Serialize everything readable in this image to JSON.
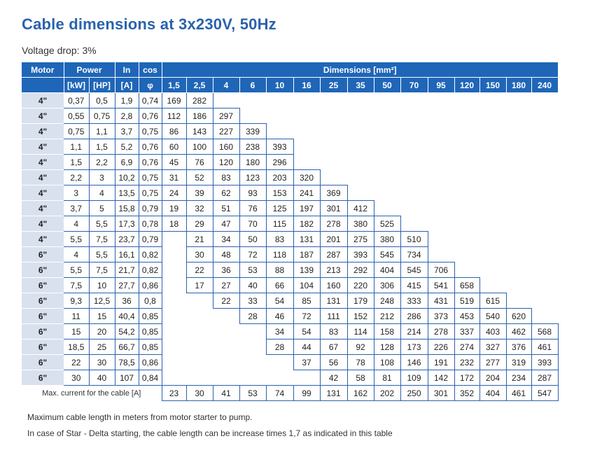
{
  "title": "Cable dimensions at 3x230V, 50Hz",
  "subtitle": "Voltage drop: 3%",
  "headers": {
    "motor": "Motor",
    "power": "Power",
    "in": "In",
    "cos": "cos",
    "dimensions": "Dimensions [mm²]",
    "kw": "[kW]",
    "hp": "[HP]",
    "a": "[A]",
    "phi": "φ"
  },
  "sizes": [
    "1,5",
    "2,5",
    "4",
    "6",
    "10",
    "16",
    "25",
    "35",
    "50",
    "70",
    "95",
    "120",
    "150",
    "180",
    "240"
  ],
  "rows": [
    {
      "motor": "4\"",
      "kw": "0,37",
      "hp": "0,5",
      "in": "1,9",
      "cos": "0,74",
      "start": 0,
      "vals": [
        "169",
        "282"
      ]
    },
    {
      "motor": "4\"",
      "kw": "0,55",
      "hp": "0,75",
      "in": "2,8",
      "cos": "0,76",
      "start": 0,
      "vals": [
        "112",
        "186",
        "297"
      ]
    },
    {
      "motor": "4\"",
      "kw": "0,75",
      "hp": "1,1",
      "in": "3,7",
      "cos": "0,75",
      "start": 0,
      "vals": [
        "86",
        "143",
        "227",
        "339"
      ]
    },
    {
      "motor": "4\"",
      "kw": "1,1",
      "hp": "1,5",
      "in": "5,2",
      "cos": "0,76",
      "start": 0,
      "vals": [
        "60",
        "100",
        "160",
        "238",
        "393"
      ]
    },
    {
      "motor": "4\"",
      "kw": "1,5",
      "hp": "2,2",
      "in": "6,9",
      "cos": "0,76",
      "start": 0,
      "vals": [
        "45",
        "76",
        "120",
        "180",
        "296"
      ]
    },
    {
      "motor": "4\"",
      "kw": "2,2",
      "hp": "3",
      "in": "10,2",
      "cos": "0,75",
      "start": 0,
      "vals": [
        "31",
        "52",
        "83",
        "123",
        "203",
        "320"
      ]
    },
    {
      "motor": "4\"",
      "kw": "3",
      "hp": "4",
      "in": "13,5",
      "cos": "0,75",
      "start": 0,
      "vals": [
        "24",
        "39",
        "62",
        "93",
        "153",
        "241",
        "369"
      ]
    },
    {
      "motor": "4\"",
      "kw": "3,7",
      "hp": "5",
      "in": "15,8",
      "cos": "0,79",
      "start": 0,
      "vals": [
        "19",
        "32",
        "51",
        "76",
        "125",
        "197",
        "301",
        "412"
      ]
    },
    {
      "motor": "4\"",
      "kw": "4",
      "hp": "5,5",
      "in": "17,3",
      "cos": "0,78",
      "start": 0,
      "vals": [
        "18",
        "29",
        "47",
        "70",
        "115",
        "182",
        "278",
        "380",
        "525"
      ]
    },
    {
      "motor": "4\"",
      "kw": "5,5",
      "hp": "7,5",
      "in": "23,7",
      "cos": "0,79",
      "start": 1,
      "vals": [
        "21",
        "34",
        "50",
        "83",
        "131",
        "201",
        "275",
        "380",
        "510"
      ]
    },
    {
      "motor": "6\"",
      "kw": "4",
      "hp": "5,5",
      "in": "16,1",
      "cos": "0,82",
      "start": 1,
      "vals": [
        "30",
        "48",
        "72",
        "118",
        "187",
        "287",
        "393",
        "545",
        "734"
      ]
    },
    {
      "motor": "6\"",
      "kw": "5,5",
      "hp": "7,5",
      "in": "21,7",
      "cos": "0,82",
      "start": 1,
      "vals": [
        "22",
        "36",
        "53",
        "88",
        "139",
        "213",
        "292",
        "404",
        "545",
        "706"
      ]
    },
    {
      "motor": "6\"",
      "kw": "7,5",
      "hp": "10",
      "in": "27,7",
      "cos": "0,86",
      "start": 1,
      "vals": [
        "17",
        "27",
        "40",
        "66",
        "104",
        "160",
        "220",
        "306",
        "415",
        "541",
        "658"
      ]
    },
    {
      "motor": "6\"",
      "kw": "9,3",
      "hp": "12,5",
      "in": "36",
      "cos": "0,8",
      "start": 2,
      "vals": [
        "22",
        "33",
        "54",
        "85",
        "131",
        "179",
        "248",
        "333",
        "431",
        "519",
        "615"
      ]
    },
    {
      "motor": "6\"",
      "kw": "11",
      "hp": "15",
      "in": "40,4",
      "cos": "0,85",
      "start": 3,
      "vals": [
        "28",
        "46",
        "72",
        "111",
        "152",
        "212",
        "286",
        "373",
        "453",
        "540",
        "620"
      ]
    },
    {
      "motor": "6\"",
      "kw": "15",
      "hp": "20",
      "in": "54,2",
      "cos": "0,85",
      "start": 4,
      "vals": [
        "34",
        "54",
        "83",
        "114",
        "158",
        "214",
        "278",
        "337",
        "403",
        "462",
        "568"
      ]
    },
    {
      "motor": "6\"",
      "kw": "18,5",
      "hp": "25",
      "in": "66,7",
      "cos": "0,85",
      "start": 4,
      "vals": [
        "28",
        "44",
        "67",
        "92",
        "128",
        "173",
        "226",
        "274",
        "327",
        "376",
        "461"
      ]
    },
    {
      "motor": "6\"",
      "kw": "22",
      "hp": "30",
      "in": "78,5",
      "cos": "0,86",
      "start": 5,
      "vals": [
        "37",
        "56",
        "78",
        "108",
        "146",
        "191",
        "232",
        "277",
        "319",
        "393"
      ]
    },
    {
      "motor": "6\"",
      "kw": "30",
      "hp": "40",
      "in": "107",
      "cos": "0,84",
      "start": 6,
      "vals": [
        "42",
        "58",
        "81",
        "109",
        "142",
        "172",
        "204",
        "234",
        "287"
      ]
    }
  ],
  "footer": {
    "label": "Max. current for the cable [A]",
    "values": [
      "23",
      "30",
      "41",
      "53",
      "74",
      "99",
      "131",
      "162",
      "202",
      "250",
      "301",
      "352",
      "404",
      "461",
      "547"
    ]
  },
  "notes": [
    "Maximum cable length in meters from motor starter to pump.",
    "In case of Star - Delta starting, the cable length can be increase times 1,7 as indicated in this table"
  ]
}
